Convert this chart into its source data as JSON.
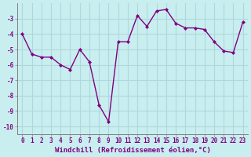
{
  "x": [
    0,
    1,
    2,
    3,
    4,
    5,
    6,
    7,
    8,
    9,
    10,
    11,
    12,
    13,
    14,
    15,
    16,
    17,
    18,
    19,
    20,
    21,
    22,
    23
  ],
  "y": [
    -4.0,
    -5.3,
    -5.5,
    -5.5,
    -6.0,
    -6.3,
    -5.0,
    -5.8,
    -8.6,
    -9.7,
    -4.5,
    -4.5,
    -2.8,
    -3.5,
    -2.5,
    -2.4,
    -3.3,
    -3.6,
    -3.6,
    -3.7,
    -4.5,
    -5.1,
    -5.2,
    -3.2
  ],
  "line_color": "#800080",
  "marker": "D",
  "marker_size": 2.0,
  "bg_color": "#c8eef0",
  "grid_color": "#b0d8dc",
  "xlabel": "Windchill (Refroidissement éolien,°C)",
  "xlabel_color": "#800080",
  "tick_color": "#800080",
  "axis_color": "#808080",
  "ylim": [
    -10.5,
    -2.0
  ],
  "xlim": [
    -0.5,
    23.5
  ],
  "yticks": [
    -10,
    -9,
    -8,
    -7,
    -6,
    -5,
    -4,
    -3
  ],
  "xticks": [
    0,
    1,
    2,
    3,
    4,
    5,
    6,
    7,
    8,
    9,
    10,
    11,
    12,
    13,
    14,
    15,
    16,
    17,
    18,
    19,
    20,
    21,
    22,
    23
  ],
  "tick_fontsize": 5.5,
  "xlabel_fontsize": 6.5,
  "line_width": 1.0
}
